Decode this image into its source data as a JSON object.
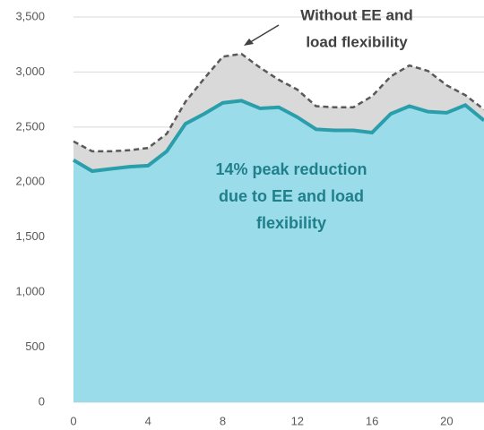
{
  "chart_data": {
    "type": "area",
    "x": [
      0,
      1,
      2,
      3,
      4,
      5,
      6,
      7,
      8,
      9,
      10,
      11,
      12,
      13,
      14,
      15,
      16,
      17,
      18,
      19,
      20,
      21,
      22
    ],
    "series": [
      {
        "color": "#9adcea",
        "line_color": "#2a9fab",
        "dashed": false,
        "values": [
          2200,
          2100,
          2120,
          2140,
          2150,
          2280,
          2530,
          2620,
          2720,
          2740,
          2670,
          2680,
          2590,
          2480,
          2470,
          2470,
          2450,
          2620,
          2690,
          2640,
          2630,
          2700,
          2560
        ]
      },
      {
        "color": "#d9d9d9",
        "line_color": "#595959",
        "dashed": true,
        "values": [
          2370,
          2280,
          2280,
          2290,
          2310,
          2440,
          2730,
          2940,
          3140,
          3165,
          3040,
          2930,
          2840,
          2690,
          2680,
          2680,
          2780,
          2960,
          3060,
          3010,
          2880,
          2790,
          2660
        ]
      }
    ],
    "xlim": [
      0,
      22
    ],
    "xticks": [
      0,
      4,
      8,
      12,
      16,
      20
    ],
    "ylim": [
      0,
      3500
    ],
    "yticks": [
      0,
      500,
      {
        "value": 1000,
        "label": "1,000"
      },
      {
        "value": 1500,
        "label": "1,500"
      },
      {
        "value": 2000,
        "label": "2,000"
      },
      {
        "value": 2500,
        "label": "2,500"
      },
      {
        "value": 3000,
        "label": "3,000"
      },
      {
        "value": 3500,
        "label": "3,500"
      }
    ],
    "grid": true,
    "annotations": [
      [
        "Without EE and",
        "load flexibility"
      ],
      [
        "14% peak reduction",
        "due to EE and load",
        "flexibility"
      ]
    ]
  }
}
